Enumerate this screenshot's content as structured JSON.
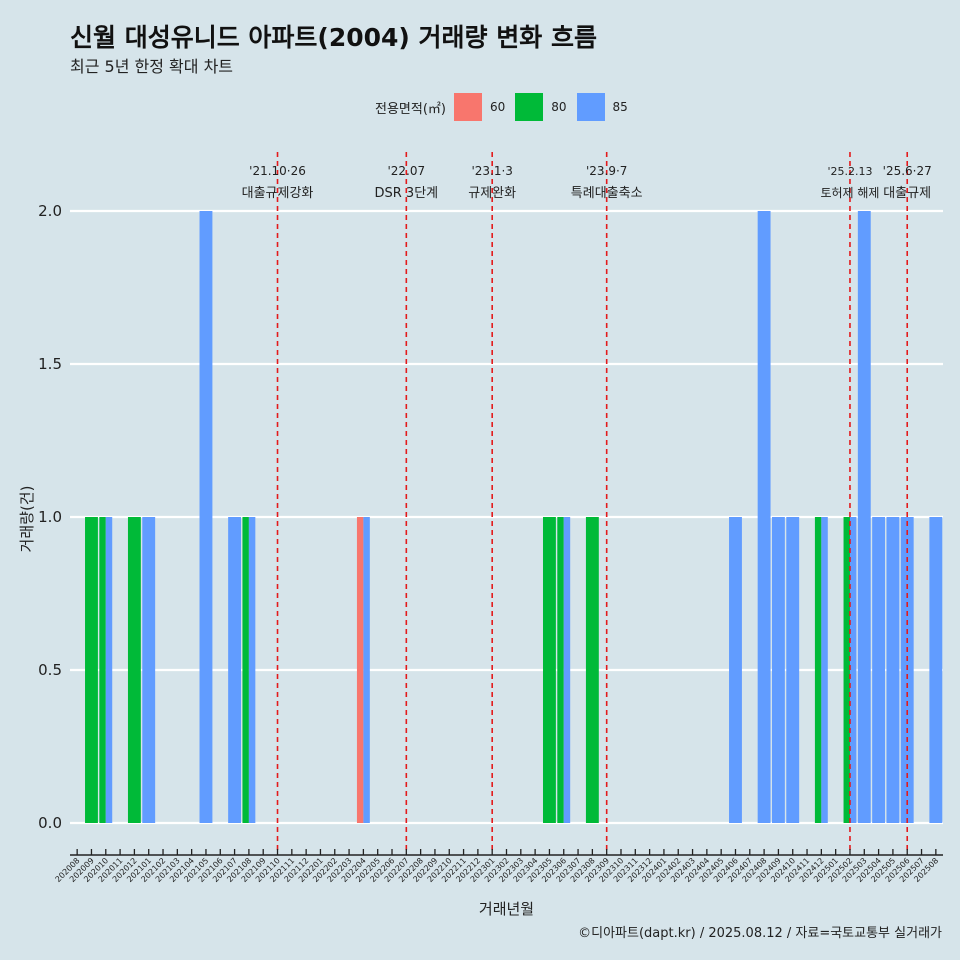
{
  "title": "신월 대성유니드 아파트(2004) 거래량 변화 흐름",
  "subtitle": "최근 5년 한정 확대 차트",
  "caption": "©디아파트(dapt.kr) / 2025.08.12 / 자료=국토교통부 실거래가",
  "legend": {
    "title": "전용면적(㎡)",
    "items": [
      {
        "label": "60",
        "color": "#f8766d"
      },
      {
        "label": "80",
        "color": "#00ba38"
      },
      {
        "label": "85",
        "color": "#619cff"
      }
    ]
  },
  "chart_data": {
    "type": "bar",
    "xlabel": "거래년월",
    "ylabel": "거래량(건)",
    "ylim": [
      0,
      2
    ],
    "yticks": [
      "0.0",
      "0.5",
      "1.0",
      "1.5",
      "2.0"
    ],
    "grid": true,
    "categories": [
      "202008",
      "202009",
      "202010",
      "202011",
      "202012",
      "202101",
      "202102",
      "202103",
      "202104",
      "202105",
      "202106",
      "202107",
      "202108",
      "202109",
      "202110",
      "202111",
      "202112",
      "202201",
      "202202",
      "202203",
      "202204",
      "202205",
      "202206",
      "202207",
      "202208",
      "202209",
      "202210",
      "202211",
      "202212",
      "202301",
      "202302",
      "202303",
      "202304",
      "202305",
      "202306",
      "202307",
      "202308",
      "202309",
      "202310",
      "202311",
      "202312",
      "202401",
      "202402",
      "202403",
      "202404",
      "202405",
      "202406",
      "202407",
      "202408",
      "202409",
      "202410",
      "202411",
      "202412",
      "202501",
      "202502",
      "202503",
      "202504",
      "202505",
      "202506",
      "202507",
      "202508"
    ],
    "series": [
      {
        "name": "60",
        "color": "#f8766d",
        "values": [
          0,
          0,
          0,
          0,
          0,
          0,
          0,
          0,
          0,
          0,
          0,
          0,
          0,
          0,
          0,
          0,
          0,
          0,
          0,
          0,
          1,
          0,
          0,
          0,
          0,
          0,
          0,
          0,
          0,
          0,
          0,
          0,
          0,
          0,
          0,
          0,
          0,
          0,
          0,
          0,
          0,
          0,
          0,
          0,
          0,
          0,
          0,
          0,
          0,
          0,
          0,
          0,
          0,
          0,
          0,
          0,
          0,
          0,
          0,
          0,
          0
        ]
      },
      {
        "name": "80",
        "color": "#00ba38",
        "values": [
          0,
          1,
          1,
          0,
          1,
          0,
          0,
          0,
          0,
          0,
          0,
          0,
          1,
          0,
          0,
          0,
          0,
          0,
          0,
          0,
          0,
          0,
          0,
          0,
          0,
          0,
          0,
          0,
          0,
          0,
          0,
          0,
          0,
          1,
          1,
          0,
          1,
          0,
          0,
          0,
          0,
          0,
          0,
          0,
          0,
          0,
          0,
          0,
          0,
          0,
          0,
          0,
          1,
          0,
          1,
          0,
          0,
          0,
          0,
          0,
          0
        ]
      },
      {
        "name": "85",
        "color": "#619cff",
        "values": [
          0,
          0,
          1,
          0,
          0,
          1,
          0,
          0,
          0,
          2,
          0,
          1,
          1,
          0,
          0,
          0,
          0,
          0,
          0,
          0,
          1,
          0,
          0,
          0,
          0,
          0,
          0,
          0,
          0,
          0,
          0,
          0,
          0,
          0,
          1,
          0,
          0,
          0,
          0,
          0,
          0,
          0,
          0,
          0,
          0,
          0,
          1,
          0,
          2,
          1,
          1,
          0,
          1,
          0,
          1,
          2,
          1,
          1,
          1,
          0,
          1
        ]
      }
    ],
    "annotations": [
      {
        "at": "202110",
        "date": "'21.10·26",
        "text": "대출규제강화"
      },
      {
        "at": "202207",
        "date": "'22.07",
        "text": "DSR 3단계"
      },
      {
        "at": "202301",
        "date": "'23.1·3",
        "text": "규제완화"
      },
      {
        "at": "202309",
        "date": "'23.9·7",
        "text": "특례대출축소"
      },
      {
        "at": "202502",
        "date": "'25.2.13",
        "text": "토허제 해제"
      },
      {
        "at": "202506",
        "date": "'25.6·27",
        "text": "대출규제"
      }
    ]
  }
}
